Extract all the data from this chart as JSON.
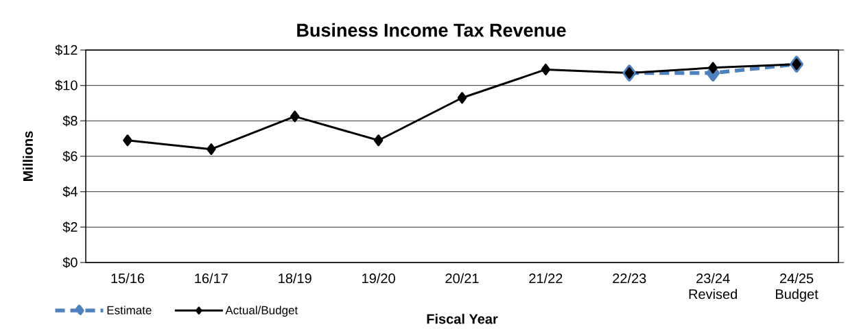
{
  "chart_data": {
    "type": "line",
    "title": "Business Income Tax Revenue",
    "xlabel": "Fiscal Year",
    "ylabel": "Millions",
    "categories": [
      "15/16",
      "16/17",
      "18/19",
      "19/20",
      "20/21",
      "21/22",
      "22/23",
      "23/24 Revised",
      "24/25 Budget"
    ],
    "series": [
      {
        "name": "Estimate",
        "color": "#4f81bd",
        "line_style": "dashed",
        "values": [
          null,
          null,
          null,
          null,
          null,
          null,
          10.7,
          10.7,
          11.2
        ]
      },
      {
        "name": "Actual/Budget",
        "color": "#000000",
        "line_style": "solid",
        "values": [
          6.9,
          6.4,
          8.25,
          6.9,
          9.3,
          10.9,
          10.7,
          11.0,
          11.2
        ]
      }
    ],
    "ylim": [
      0,
      12
    ],
    "yticks": [
      {
        "value": 0,
        "label": "$0"
      },
      {
        "value": 2,
        "label": "$2"
      },
      {
        "value": 4,
        "label": "$4"
      },
      {
        "value": 6,
        "label": "$6"
      },
      {
        "value": 8,
        "label": "$8"
      },
      {
        "value": 10,
        "label": "$10"
      },
      {
        "value": 12,
        "label": "$12"
      }
    ],
    "grid": "y",
    "legend": "bottom left",
    "marker": "diamond"
  }
}
